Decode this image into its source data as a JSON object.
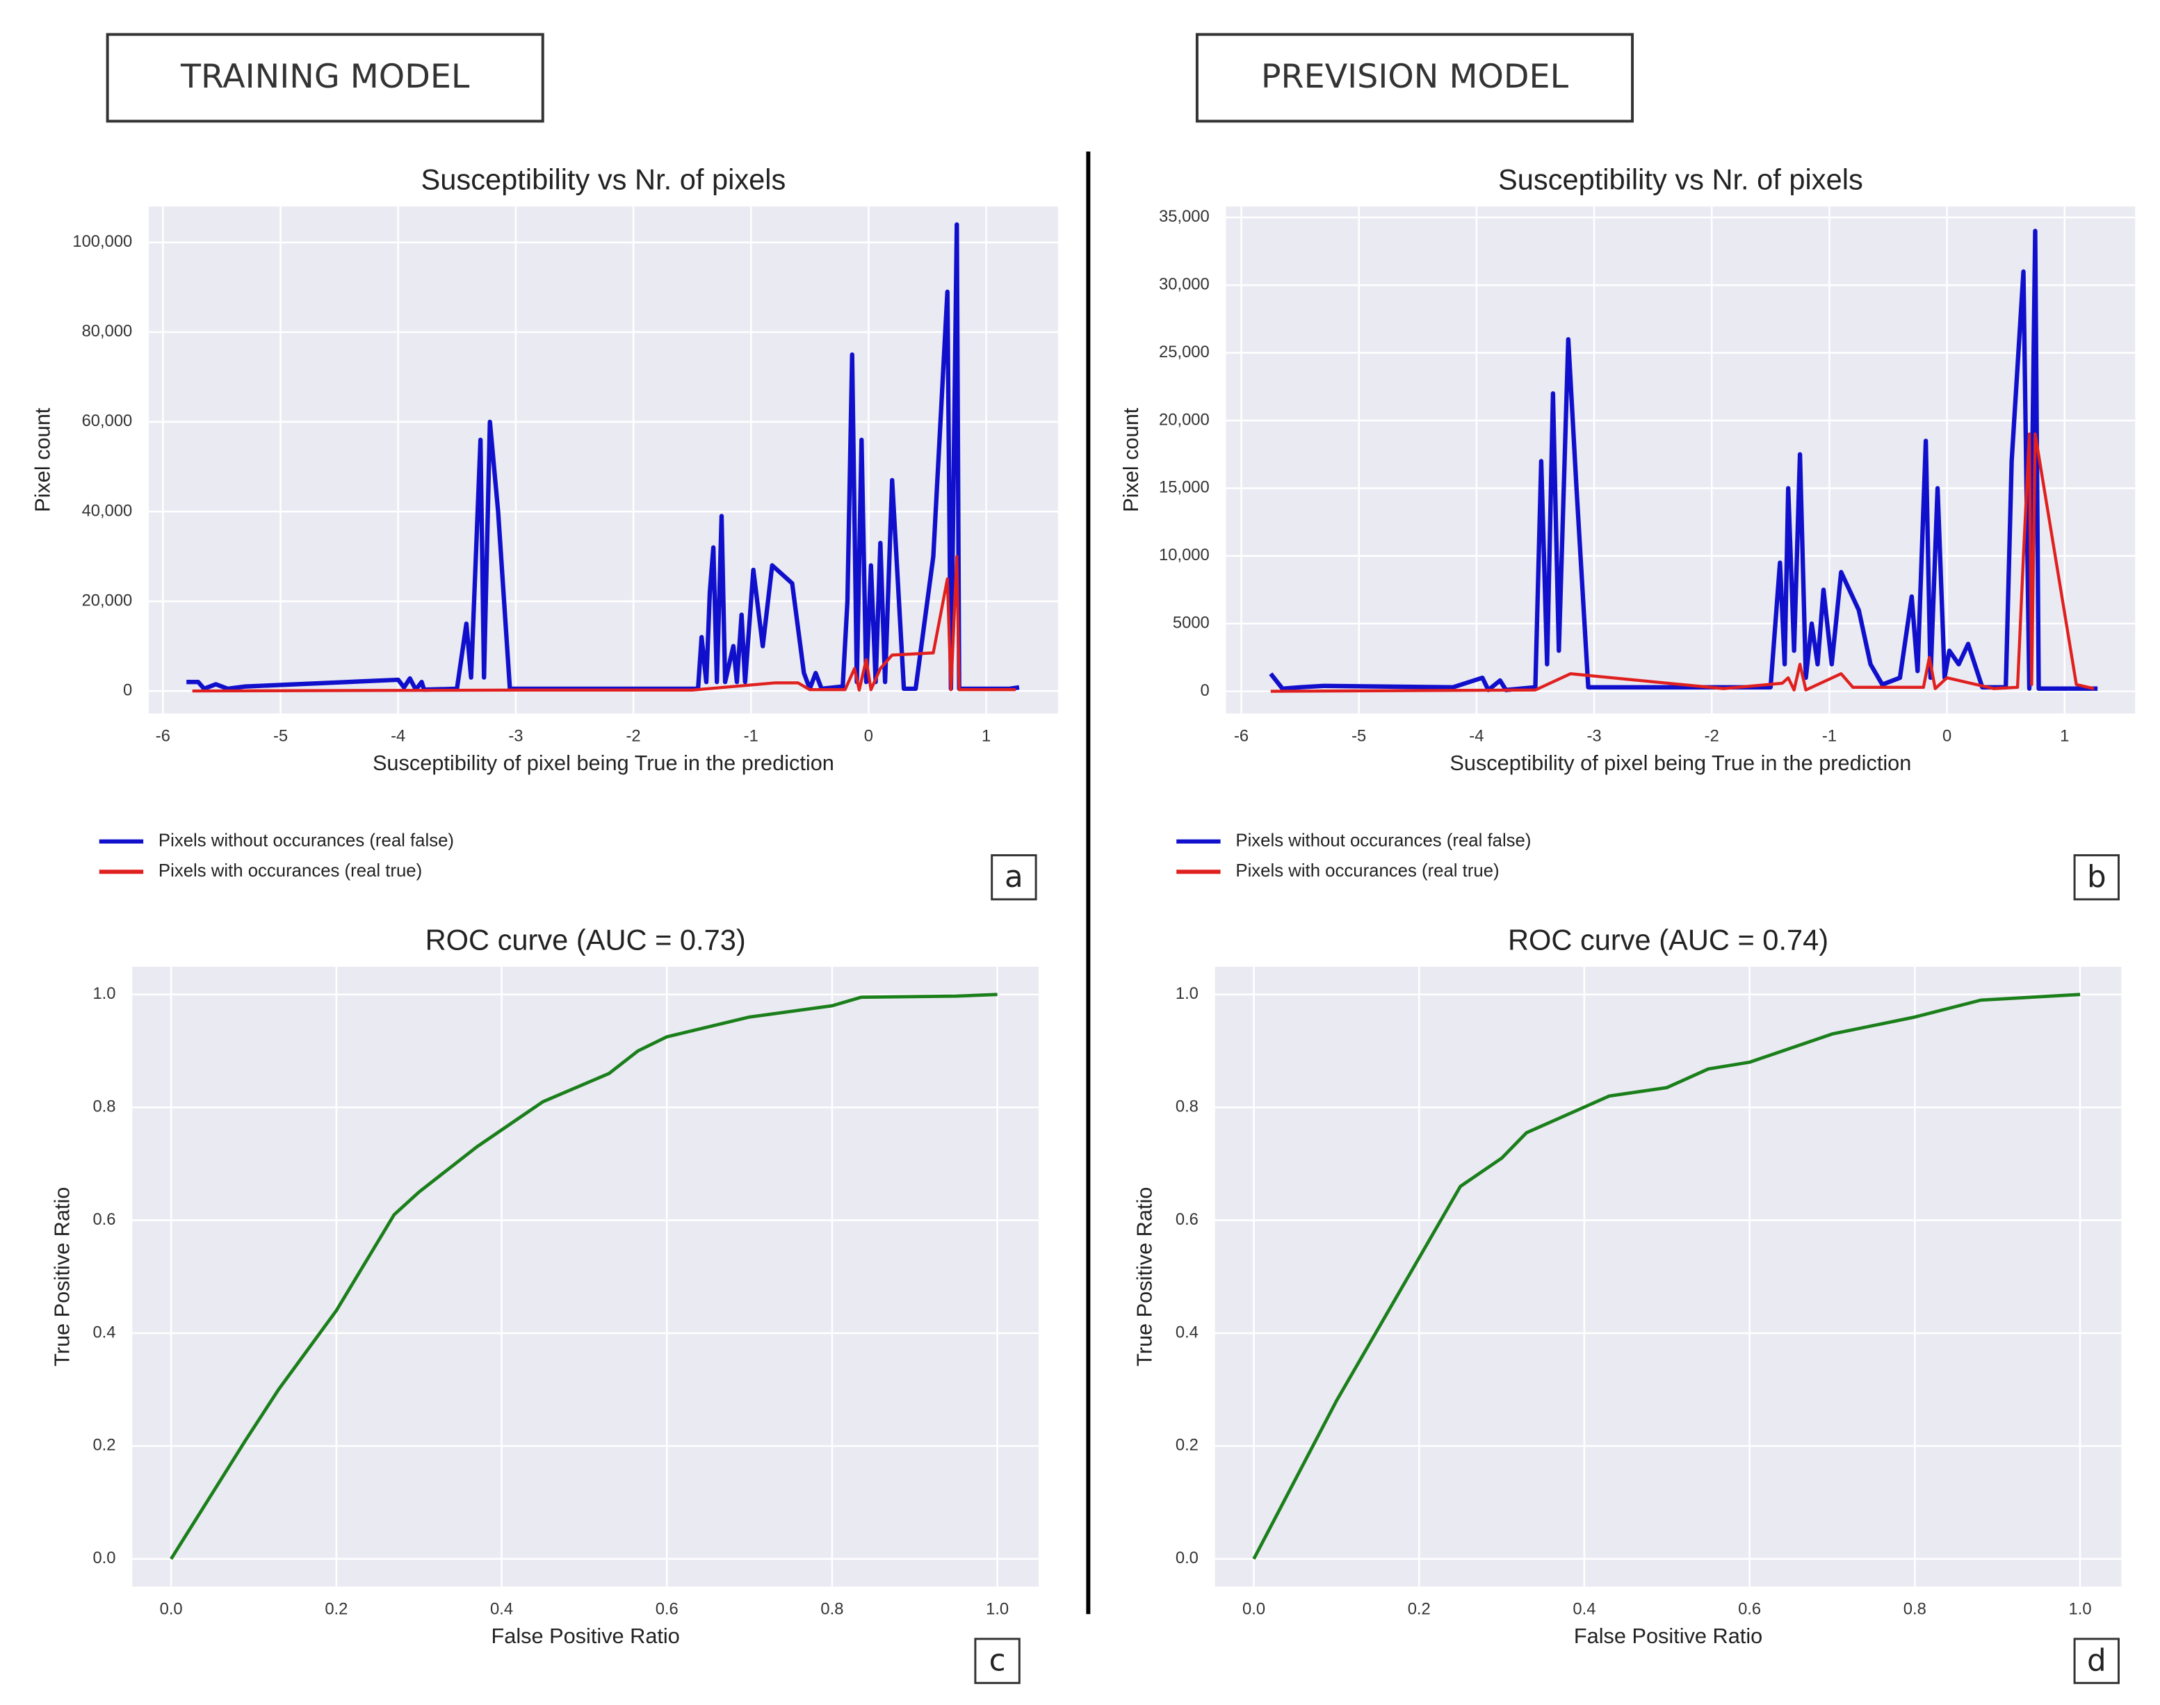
{
  "columns": [
    "TRAINING MODEL",
    "PREVISION MODEL"
  ],
  "chart_data": [
    {
      "type": "line",
      "panel": "a",
      "title": "Susceptibility vs Nr. of pixels",
      "xlabel": "Susceptibility of pixel being True in the prediction",
      "ylabel": "Pixel count",
      "xlim": [
        -6.12,
        1.61
      ],
      "ylim": [
        -5000,
        108000
      ],
      "xticks": [
        -6,
        -5,
        -4,
        -3,
        -2,
        -1,
        0,
        1
      ],
      "yticks": [
        0,
        {
          "value": 20000,
          "label": "20,000"
        },
        {
          "value": 40000,
          "label": "40,000"
        },
        {
          "value": 60000,
          "label": "60,000"
        },
        {
          "value": 80000,
          "label": "80,000"
        },
        {
          "value": 100000,
          "label": "100,000"
        }
      ],
      "grid": true,
      "legend": "below-left",
      "series": [
        {
          "name": "Pixels without occurances (real false)",
          "color": "#1010cc",
          "width": 3.2,
          "x": [
            -5.8,
            -5.7,
            -5.65,
            -5.55,
            -5.45,
            -5.3,
            -4.0,
            -3.95,
            -3.9,
            -3.85,
            -3.8,
            -3.78,
            -3.5,
            -3.42,
            -3.38,
            -3.3,
            -3.27,
            -3.22,
            -3.15,
            -3.05,
            -1.45,
            -1.42,
            -1.38,
            -1.35,
            -1.32,
            -1.29,
            -1.25,
            -1.22,
            -1.15,
            -1.12,
            -1.08,
            -1.05,
            -0.98,
            -0.9,
            -0.82,
            -0.65,
            -0.55,
            -0.5,
            -0.45,
            -0.4,
            -0.22,
            -0.18,
            -0.14,
            -0.1,
            -0.06,
            -0.02,
            0.02,
            0.06,
            0.1,
            0.14,
            0.2,
            0.3,
            0.4,
            0.55,
            0.67,
            0.7,
            0.75,
            0.77,
            1.2,
            1.28
          ],
          "values": [
            2000,
            2000,
            500,
            1500,
            500,
            1000,
            2500,
            800,
            2800,
            300,
            2000,
            300,
            500,
            15000,
            3000,
            56000,
            3000,
            60000,
            40000,
            500,
            500,
            12000,
            2000,
            22000,
            32000,
            2000,
            39000,
            2000,
            10000,
            2000,
            17000,
            2000,
            27000,
            10000,
            28000,
            24000,
            4000,
            500,
            4000,
            500,
            1000,
            20000,
            75000,
            2000,
            56000,
            2000,
            28000,
            2000,
            33000,
            2000,
            47000,
            500,
            500,
            30000,
            89000,
            500,
            104000,
            500,
            500,
            800
          ]
        },
        {
          "name": "Pixels with occurances (real true)",
          "color": "#e0201f",
          "width": 2.2,
          "x": [
            -5.75,
            -3,
            -1.5,
            -0.8,
            -0.6,
            -0.5,
            -0.2,
            -0.12,
            -0.08,
            -0.02,
            0.02,
            0.1,
            0.2,
            0.55,
            0.67,
            0.7,
            0.75,
            0.77,
            1.25
          ],
          "values": [
            0,
            200,
            200,
            1800,
            1800,
            300,
            300,
            5000,
            200,
            7000,
            300,
            5000,
            8000,
            8500,
            25000,
            300,
            30000,
            300,
            300
          ]
        }
      ]
    },
    {
      "type": "line",
      "panel": "b",
      "title": "Susceptibility vs Nr. of pixels",
      "xlabel": "Susceptibility of pixel being True in the prediction",
      "ylabel": "Pixel count",
      "xlim": [
        -6.13,
        1.6
      ],
      "ylim": [
        -1630,
        35800
      ],
      "xticks": [
        -6,
        -5,
        -4,
        -3,
        -2,
        -1,
        0,
        1
      ],
      "yticks": [
        0,
        5000,
        {
          "value": 10000,
          "label": "10,000"
        },
        {
          "value": 15000,
          "label": "15,000"
        },
        {
          "value": 20000,
          "label": "20,000"
        },
        {
          "value": 25000,
          "label": "25,000"
        },
        {
          "value": 30000,
          "label": "30,000"
        },
        {
          "value": 35000,
          "label": "35,000"
        }
      ],
      "grid": true,
      "legend": "below-left",
      "series": [
        {
          "name": "Pixels without occurances (real false)",
          "color": "#1010cc",
          "width": 3.2,
          "x": [
            -5.75,
            -5.65,
            -5.5,
            -5.3,
            -4.2,
            -3.95,
            -3.9,
            -3.8,
            -3.75,
            -3.5,
            -3.45,
            -3.4,
            -3.35,
            -3.3,
            -3.22,
            -3.15,
            -3.05,
            -1.5,
            -1.42,
            -1.38,
            -1.35,
            -1.3,
            -1.25,
            -1.2,
            -1.15,
            -1.1,
            -1.05,
            -0.98,
            -0.9,
            -0.75,
            -0.65,
            -0.55,
            -0.4,
            -0.3,
            -0.25,
            -0.18,
            -0.14,
            -0.08,
            -0.02,
            0.02,
            0.1,
            0.18,
            0.3,
            0.5,
            0.55,
            0.65,
            0.7,
            0.75,
            0.78,
            1.2,
            1.28
          ],
          "values": [
            1300,
            200,
            300,
            400,
            300,
            1000,
            100,
            800,
            100,
            300,
            17000,
            2000,
            22000,
            3000,
            26000,
            15000,
            300,
            300,
            9500,
            2000,
            15000,
            3000,
            17500,
            1000,
            5000,
            2000,
            7500,
            2000,
            8800,
            6000,
            2000,
            500,
            1000,
            7000,
            1500,
            18500,
            1000,
            15000,
            1000,
            3000,
            2000,
            3500,
            300,
            300,
            17000,
            31000,
            200,
            34000,
            200,
            200,
            200
          ]
        },
        {
          "name": "Pixels with occurances (real true)",
          "color": "#e0201f",
          "width": 2.2,
          "x": [
            -5.75,
            -3.5,
            -3.2,
            -1.9,
            -1.4,
            -1.35,
            -1.3,
            -1.25,
            -1.2,
            -0.9,
            -0.8,
            -0.2,
            -0.15,
            -0.1,
            0,
            0.4,
            0.6,
            0.65,
            0.7,
            0.72,
            0.75,
            1.1,
            1.25
          ],
          "values": [
            0,
            100,
            1300,
            200,
            600,
            1000,
            100,
            2000,
            100,
            1300,
            300,
            300,
            2500,
            200,
            1000,
            200,
            300,
            10000,
            19000,
            500,
            19000,
            500,
            200
          ]
        }
      ]
    },
    {
      "type": "line",
      "panel": "c",
      "title": "ROC curve (AUC = 0.73)",
      "xlabel": "False Positive Ratio",
      "ylabel": "True Positive Ratio",
      "xlim": [
        -0.047,
        1.05
      ],
      "ylim": [
        -0.049,
        1.049
      ],
      "xticks": [
        {
          "value": 0,
          "label": "0.0"
        },
        0.2,
        0.4,
        0.6,
        0.8,
        {
          "value": 1,
          "label": "1.0"
        }
      ],
      "yticks": [
        {
          "value": 0,
          "label": "0.0"
        },
        0.2,
        0.4,
        0.6,
        0.8,
        {
          "value": 1,
          "label": "1.0"
        }
      ],
      "grid": true,
      "series": [
        {
          "color": "#1a7f1a",
          "width": 2.4,
          "x": [
            0,
            0.09,
            0.13,
            0.2,
            0.27,
            0.3,
            0.37,
            0.45,
            0.53,
            0.565,
            0.6,
            0.7,
            0.8,
            0.835,
            0.95,
            1
          ],
          "values": [
            0,
            0.21,
            0.3,
            0.44,
            0.61,
            0.65,
            0.73,
            0.81,
            0.86,
            0.9,
            0.925,
            0.96,
            0.98,
            0.995,
            0.997,
            1
          ]
        }
      ]
    },
    {
      "type": "line",
      "panel": "d",
      "title": "ROC curve (AUC = 0.74)",
      "xlabel": "False Positive Ratio",
      "ylabel": "True Positive Ratio",
      "xlim": [
        -0.047,
        1.05
      ],
      "ylim": [
        -0.049,
        1.049
      ],
      "xticks": [
        {
          "value": 0,
          "label": "0.0"
        },
        0.2,
        0.4,
        0.6,
        0.8,
        {
          "value": 1,
          "label": "1.0"
        }
      ],
      "yticks": [
        {
          "value": 0,
          "label": "0.0"
        },
        0.2,
        0.4,
        0.6,
        0.8,
        {
          "value": 1,
          "label": "1.0"
        }
      ],
      "grid": true,
      "series": [
        {
          "color": "#1a7f1a",
          "width": 2.4,
          "x": [
            0,
            0.1,
            0.25,
            0.3,
            0.33,
            0.43,
            0.5,
            0.55,
            0.6,
            0.7,
            0.8,
            0.88,
            1
          ],
          "values": [
            0,
            0.28,
            0.66,
            0.71,
            0.755,
            0.82,
            0.835,
            0.868,
            0.88,
            0.93,
            0.96,
            0.99,
            1
          ]
        }
      ]
    }
  ]
}
